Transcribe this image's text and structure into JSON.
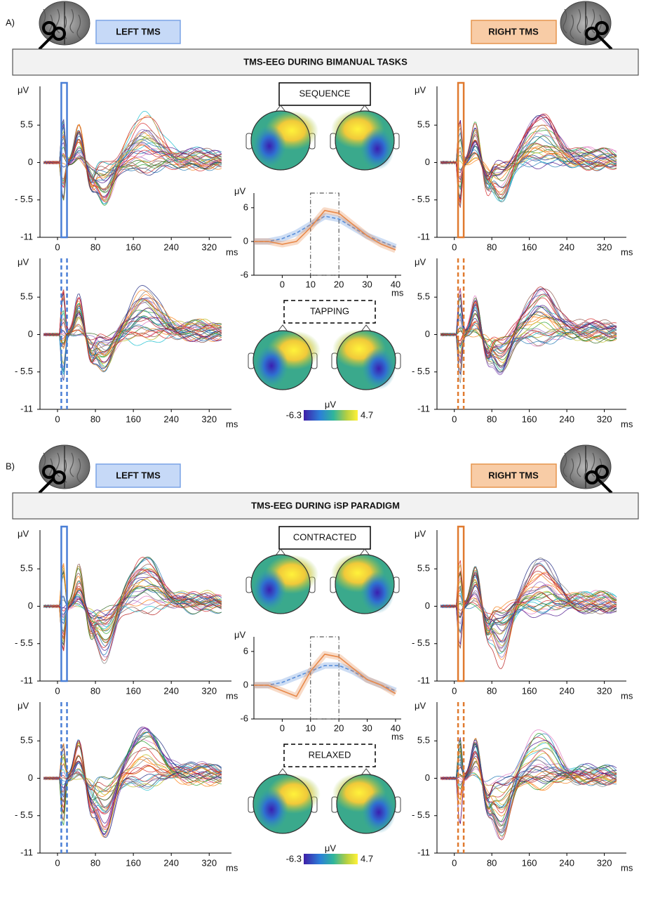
{
  "sections": [
    {
      "label": "A)",
      "left_tms": "LEFT TMS",
      "right_tms": "RIGHT TMS",
      "banner": "TMS-EEG DURING BIMANUAL TASKS",
      "condition_1": "SEQUENCE",
      "condition_2": "TAPPING",
      "waveform": {
        "series": [
          {
            "color": "#5b8fd9",
            "values": [
              0,
              0,
              0.5,
              1.5,
              3,
              4.5,
              4,
              2.5,
              1,
              0,
              -1
            ]
          },
          {
            "color": "#e8894a",
            "values": [
              0,
              0,
              -0.5,
              0,
              2.5,
              5.5,
              5,
              3,
              1,
              -0.5,
              -1.5
            ]
          }
        ]
      }
    },
    {
      "label": "B)",
      "left_tms": "LEFT TMS",
      "right_tms": "RIGHT TMS",
      "banner": "TMS-EEG DURING iSP PARADIGM",
      "condition_1": "CONTRACTED",
      "condition_2": "RELAXED",
      "waveform": {
        "series": [
          {
            "color": "#5b8fd9",
            "values": [
              0,
              0,
              0.5,
              1.5,
              2.5,
              3.5,
              3.5,
              2.5,
              1,
              0,
              -1
            ]
          },
          {
            "color": "#e8894a",
            "values": [
              0,
              0,
              -1,
              -2,
              2.5,
              5.5,
              5,
              3,
              1,
              0,
              -1.5
            ]
          }
        ]
      }
    }
  ],
  "butterfly_axis": {
    "y_label": "μV",
    "x_label": "ms",
    "ylim": [
      -11,
      11.2
    ],
    "yticks": [
      5.5,
      0,
      {
        "value": -5.5,
        "label": "- 5.5"
      },
      -11
    ],
    "xlim": [
      -37,
      367
    ],
    "xticks": [
      0,
      80,
      160,
      240,
      320
    ],
    "stim_window": [
      8,
      20
    ]
  },
  "waveform_axis": {
    "y_label": "μV",
    "x_label": "ms",
    "ylim": [
      -6,
      8.6
    ],
    "yticks": [
      6,
      0,
      -6
    ],
    "xlim": [
      -10,
      42
    ],
    "xticks": [
      0,
      10,
      20,
      30,
      40
    ],
    "x": [
      -10,
      -5,
      0,
      5,
      10,
      15,
      20,
      25,
      30,
      35,
      40
    ],
    "window": [
      10,
      20
    ]
  },
  "colorbar": {
    "label": "μV",
    "min": -6.3,
    "max": 4.7
  }
}
